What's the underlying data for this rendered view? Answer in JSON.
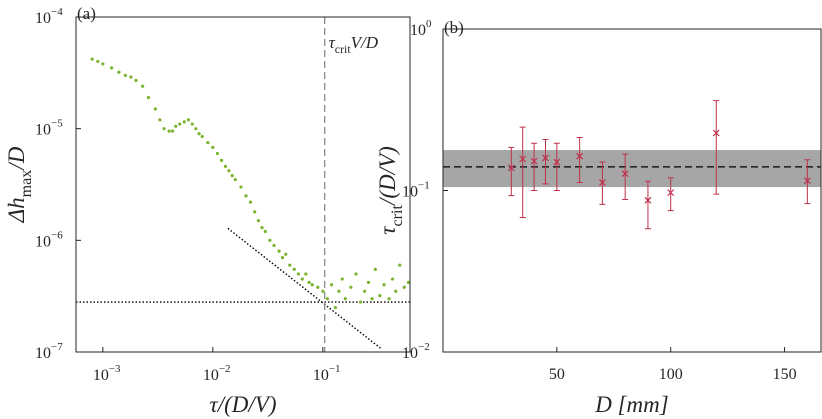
{
  "chart_data": [
    {
      "type": "scatter",
      "panel_label": "(a)",
      "xlabel": [
        {
          "text": "τ/(D/V)"
        }
      ],
      "ylabel": [
        {
          "text": "Δh"
        },
        {
          "text": "max",
          "sub": true
        },
        {
          "text": "/D"
        }
      ],
      "xlog": true,
      "ylog": true,
      "xlim": [
        0.00057,
        0.62
      ],
      "ylim": [
        1e-07,
        0.0001
      ],
      "xticks": [
        {
          "value": 0.001,
          "label": "10",
          "exponent": "−3"
        },
        {
          "value": 0.01,
          "label": "10",
          "exponent": "−2"
        },
        {
          "value": 0.1,
          "label": "10",
          "exponent": "−1"
        }
      ],
      "yticks": [
        {
          "value": 1e-07,
          "label": "10",
          "exponent": "−7"
        },
        {
          "value": 1e-06,
          "label": "10",
          "exponent": "−6"
        },
        {
          "value": 1e-05,
          "label": "10",
          "exponent": "−5"
        },
        {
          "value": 0.0001,
          "label": "10",
          "exponent": "−4"
        }
      ],
      "color": "#7ab32e",
      "x": [
        0.0008,
        0.0009,
        0.001,
        0.0012,
        0.0014,
        0.0016,
        0.0018,
        0.002,
        0.0023,
        0.0026,
        0.003,
        0.0033,
        0.0036,
        0.004,
        0.0043,
        0.0046,
        0.005,
        0.0055,
        0.006,
        0.0065,
        0.007,
        0.0075,
        0.008,
        0.009,
        0.01,
        0.011,
        0.012,
        0.013,
        0.014,
        0.015,
        0.016,
        0.018,
        0.02,
        0.022,
        0.024,
        0.026,
        0.028,
        0.03,
        0.033,
        0.036,
        0.04,
        0.043,
        0.046,
        0.05,
        0.055,
        0.06,
        0.065,
        0.07,
        0.075,
        0.08,
        0.09,
        0.1,
        0.11,
        0.12,
        0.13,
        0.14,
        0.15,
        0.16,
        0.18,
        0.2,
        0.22,
        0.24,
        0.26,
        0.28,
        0.3,
        0.33,
        0.36,
        0.4,
        0.43,
        0.46,
        0.5,
        0.55,
        0.6
      ],
      "y": [
        4.2e-05,
        4e-05,
        3.8e-05,
        3.5e-05,
        3.2e-05,
        3e-05,
        2.9e-05,
        2.7e-05,
        2.4e-05,
        1.9e-05,
        1.5e-05,
        1.2e-05,
        1e-05,
        9.5e-06,
        9.5e-06,
        1.05e-05,
        1.1e-05,
        1.15e-05,
        1.2e-05,
        1.1e-05,
        1e-05,
        9e-06,
        8.5e-06,
        7.5e-06,
        6.8e-06,
        6e-06,
        5.2e-06,
        4.6e-06,
        4.2e-06,
        3.8e-06,
        3.5e-06,
        3e-06,
        2.5e-06,
        2.2e-06,
        1.8e-06,
        1.5e-06,
        1.3e-06,
        1.2e-06,
        1e-06,
        9e-07,
        8e-07,
        7e-07,
        7.5e-07,
        6e-07,
        5.5e-07,
        5e-07,
        4.5e-07,
        5e-07,
        4.2e-07,
        4e-07,
        3.8e-07,
        3.5e-07,
        3e-07,
        4e-07,
        2.5e-07,
        3.5e-07,
        4.5e-07,
        3e-07,
        3.8e-07,
        5e-07,
        2.8e-07,
        3.5e-07,
        4.2e-07,
        3e-07,
        5.5e-07,
        3.2e-07,
        4e-07,
        3e-07,
        4.5e-07,
        3.5e-07,
        6e-07,
        3.8e-07,
        4.2e-07
      ],
      "hline": 2.8e-07,
      "vline": 0.104,
      "vline_label": [
        {
          "text": "τ"
        },
        {
          "text": "crit",
          "sub": true
        },
        {
          "text": "V/D"
        }
      ],
      "fit_line": {
        "x": [
          0.0137,
          0.343
        ],
        "y": [
          1.28e-06,
          1.06e-07
        ]
      }
    },
    {
      "type": "errorbar",
      "panel_label": "(b)",
      "xlabel": [
        {
          "text": "D [mm]"
        }
      ],
      "ylabel": [
        {
          "text": "τ"
        },
        {
          "text": "crit",
          "sub": true
        },
        {
          "text": "/(D/V)"
        }
      ],
      "xlog": false,
      "ylog": true,
      "xlim": [
        0,
        166
      ],
      "ylim": [
        0.01,
        1
      ],
      "xticks": [
        50,
        100,
        150
      ],
      "yticks": [
        {
          "value": 0.01,
          "label": "10",
          "exponent": "−2"
        },
        {
          "value": 0.1,
          "label": "10",
          "exponent": "−1"
        },
        {
          "value": 1,
          "label": "10",
          "exponent": "0"
        }
      ],
      "color": "#c0304a",
      "x": [
        30,
        35,
        40,
        45,
        50,
        60,
        70,
        80,
        90,
        100,
        120,
        160
      ],
      "values": [
        0.138,
        0.157,
        0.152,
        0.159,
        0.15,
        0.163,
        0.112,
        0.127,
        0.087,
        0.097,
        0.227,
        0.115
      ],
      "lower": [
        0.093,
        0.068,
        0.1,
        0.11,
        0.1,
        0.112,
        0.082,
        0.088,
        0.058,
        0.075,
        0.095,
        0.083
      ],
      "upper": [
        0.185,
        0.247,
        0.196,
        0.207,
        0.196,
        0.213,
        0.15,
        0.168,
        0.114,
        0.12,
        0.36,
        0.155
      ],
      "band": [
        0.105,
        0.178
      ],
      "band_color": "#a6a6a6",
      "ref_line": 0.14
    }
  ]
}
